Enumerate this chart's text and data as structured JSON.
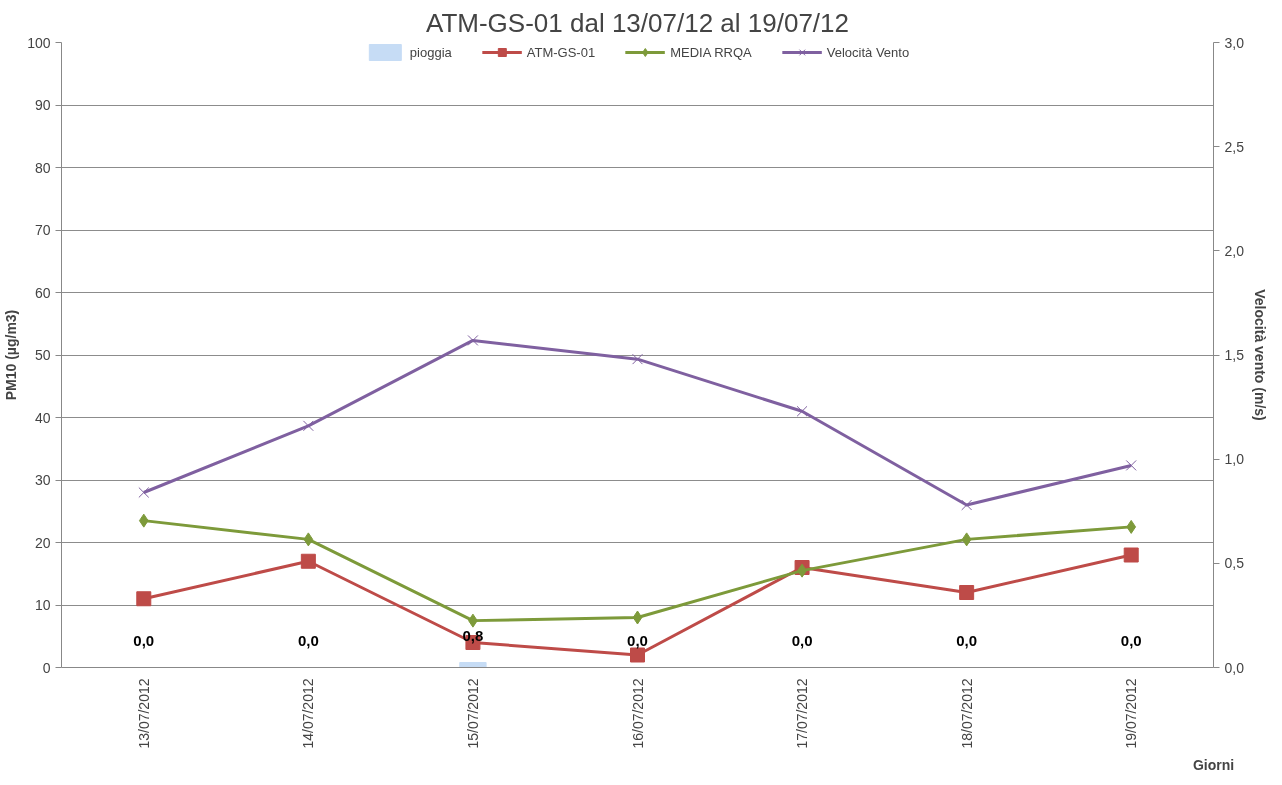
{
  "chart_data": {
    "type": "line",
    "title": "ATM-GS-01 dal 13/07/12 al 19/07/12",
    "xlabel": "Giorni",
    "ylabel": "PM10 (µg/m3)",
    "y2label": "Velocità vento (m/s)",
    "categories": [
      "13/07/2012",
      "14/07/2012",
      "15/07/2012",
      "16/07/2012",
      "17/07/2012",
      "18/07/2012",
      "19/07/2012"
    ],
    "series": [
      {
        "name": "pioggia",
        "type": "bar",
        "color": "#c6dcf5",
        "values": [
          0,
          0,
          0.8,
          0,
          0,
          0,
          0
        ],
        "value_labels": [
          "0,0",
          "0,0",
          "0,8",
          "0,0",
          "0,0",
          "0,0",
          "0,0"
        ]
      },
      {
        "name": "ATM-GS-01",
        "color": "#be4b48",
        "marker": "square",
        "values": [
          11,
          17,
          4,
          2,
          16,
          12,
          18
        ]
      },
      {
        "name": "MEDIA RRQA",
        "color": "#7d9a3a",
        "marker": "diamond",
        "values": [
          23.5,
          20.5,
          7.5,
          8,
          15.5,
          20.5,
          22.5
        ]
      },
      {
        "name": "Velocità Vento",
        "color": "#7f60a0",
        "marker": "cross",
        "axis": "y2",
        "values": [
          0.84,
          1.16,
          1.57,
          1.48,
          1.23,
          0.78,
          0.97
        ]
      }
    ],
    "ylim": [
      0,
      100
    ],
    "yticks": [
      0,
      10,
      20,
      30,
      40,
      50,
      60,
      70,
      80,
      90,
      100
    ],
    "y2lim": [
      0,
      3
    ],
    "y2ticks": [
      {
        "value": 0,
        "label": "0,0"
      },
      {
        "value": 0.5,
        "label": "0,5"
      },
      {
        "value": 1,
        "label": "1,0"
      },
      {
        "value": 1.5,
        "label": "1,5"
      },
      {
        "value": 2,
        "label": "2,0"
      },
      {
        "value": 2.5,
        "label": "2,5"
      },
      {
        "value": 3,
        "label": "3,0"
      }
    ],
    "grid": "y",
    "legend": "top",
    "line_style": "solid"
  }
}
